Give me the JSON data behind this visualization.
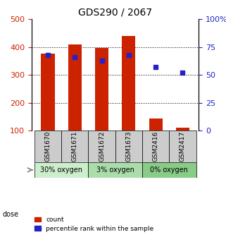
{
  "title": "GDS290 / 2067",
  "categories": [
    "GSM1670",
    "GSM1671",
    "GSM1672",
    "GSM1673",
    "GSM2416",
    "GSM2417"
  ],
  "counts": [
    375,
    408,
    395,
    440,
    145,
    110
  ],
  "percentiles": [
    68,
    66,
    63,
    68,
    57,
    52
  ],
  "bar_color": "#cc2200",
  "dot_color": "#2222cc",
  "ylim_left": [
    100,
    500
  ],
  "ylim_right": [
    0,
    100
  ],
  "yticks_left": [
    100,
    200,
    300,
    400,
    500
  ],
  "yticks_right": [
    0,
    25,
    50,
    75,
    100
  ],
  "ytick_labels_right": [
    "0",
    "25",
    "50",
    "75",
    "100%"
  ],
  "grid_values": [
    200,
    300,
    400
  ],
  "dose_groups": [
    {
      "label": "30% oxygen",
      "indices": [
        0,
        1
      ],
      "color": "#cceecc"
    },
    {
      "label": "3% oxygen",
      "indices": [
        2,
        3
      ],
      "color": "#aaddaa"
    },
    {
      "label": "0% oxygen",
      "indices": [
        4,
        5
      ],
      "color": "#88cc88"
    }
  ],
  "dose_label": "dose",
  "legend_count_label": "count",
  "legend_percentile_label": "percentile rank within the sample",
  "background_color": "#ffffff",
  "tick_label_color_left": "#cc2200",
  "tick_label_color_right": "#2222cc",
  "sample_box_color": "#cccccc",
  "bar_width": 0.5
}
